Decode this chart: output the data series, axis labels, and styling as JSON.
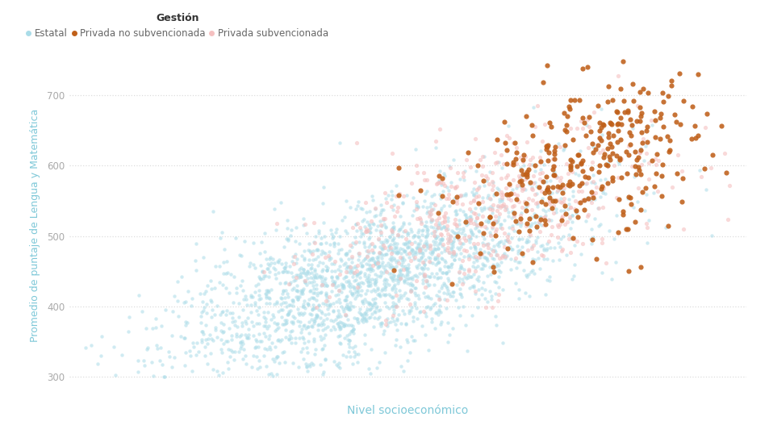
{
  "xlabel": "Nivel socioeconómico",
  "ylabel": "Promedio de puntaje de Lengua y Matemática",
  "legend_title": "Gestión",
  "legend_entries": [
    "Estatal",
    "Privada no subvencionada",
    "Privada subvencionada"
  ],
  "colors": {
    "estatal": "#aadce8",
    "privada_no_sub": "#c0601a",
    "privada_sub": "#f5c0c0"
  },
  "xlim": [
    -3.5,
    3.2
  ],
  "ylim": [
    270,
    760
  ],
  "yticks": [
    300,
    400,
    500,
    600,
    700
  ],
  "background_color": "#ffffff",
  "grid_color": "#dddddd",
  "axis_label_color": "#7ec8d8",
  "tick_label_color": "#aaaaaa",
  "alpha_estatal": 0.55,
  "alpha_privada_no_sub": 0.88,
  "alpha_privada_sub": 0.6,
  "dot_size_estatal": 10,
  "dot_size_privada_no_sub": 20,
  "dot_size_privada_sub": 14,
  "seed": 42,
  "n_estatal": 2200,
  "n_privada_no_sub": 320,
  "n_privada_sub": 480
}
